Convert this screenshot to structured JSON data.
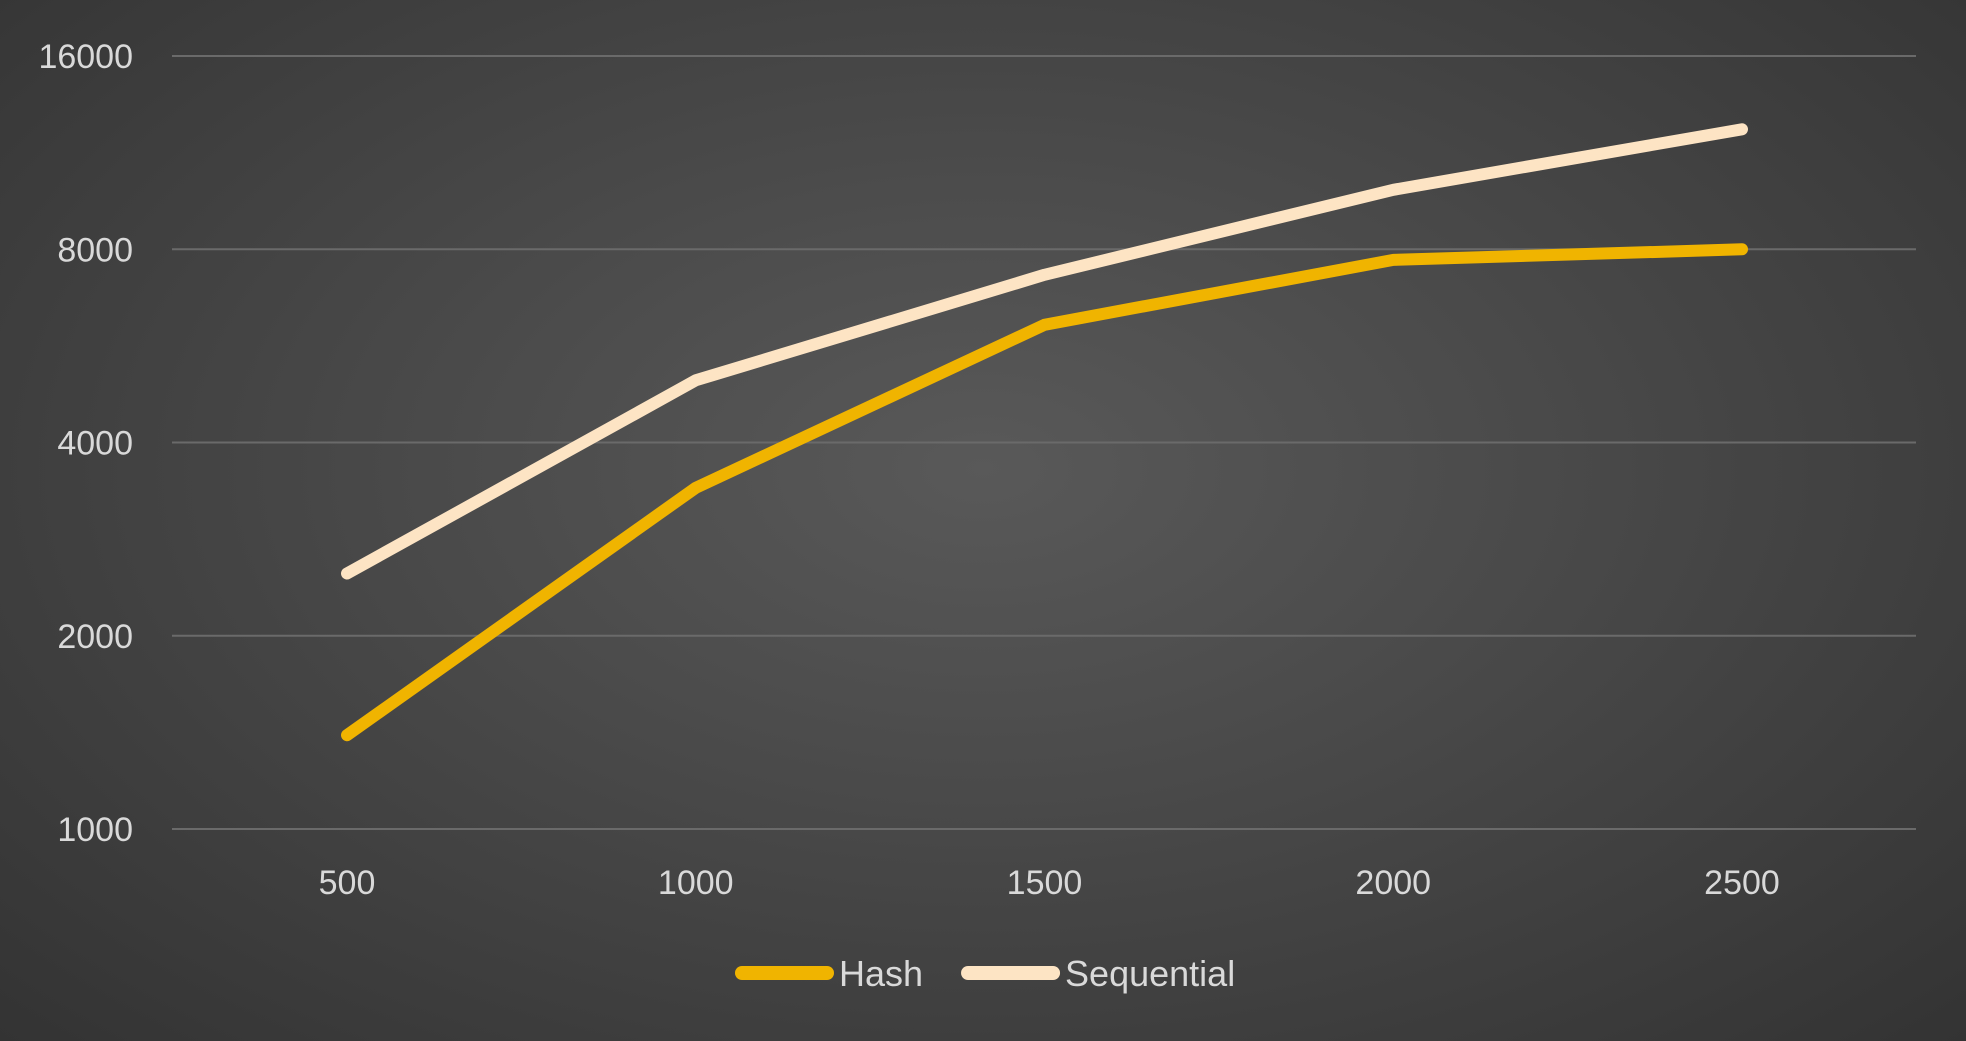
{
  "chart_data": {
    "type": "line",
    "title": "",
    "xlabel": "",
    "ylabel": "",
    "x": [
      500,
      1000,
      1500,
      2000,
      2500
    ],
    "y_scale": "log2",
    "ylim": [
      1000,
      16000
    ],
    "y_ticks": [
      1000,
      2000,
      4000,
      8000,
      16000
    ],
    "grid": true,
    "legend_position": "bottom",
    "series": [
      {
        "name": "Hash",
        "color": "#f0b400",
        "values": [
          1400,
          3400,
          6100,
          7700,
          8000
        ]
      },
      {
        "name": "Sequential",
        "color": "#fde4c4",
        "values": [
          2500,
          5000,
          7300,
          9900,
          12300
        ]
      }
    ]
  }
}
